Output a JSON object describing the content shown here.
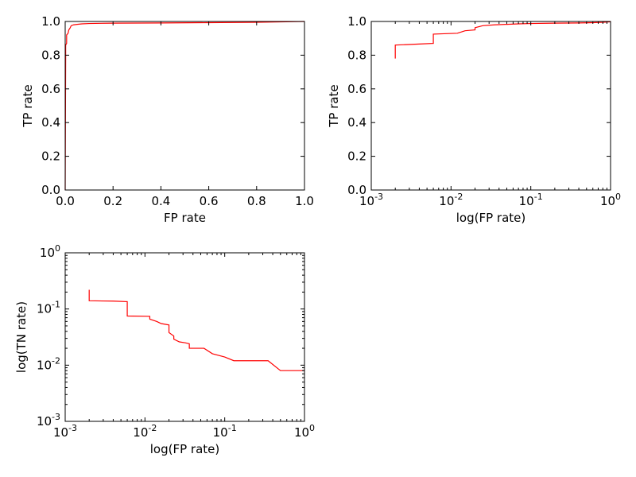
{
  "chart_data": [
    {
      "type": "line",
      "xlabel": "FP rate",
      "ylabel": "TP rate",
      "xscale": "linear",
      "yscale": "linear",
      "xlim": [
        0.0,
        1.0
      ],
      "ylim": [
        0.0,
        1.0
      ],
      "xticks": [
        0.0,
        0.2,
        0.4,
        0.6,
        0.8,
        1.0
      ],
      "yticks": [
        0.0,
        0.2,
        0.4,
        0.6,
        0.8,
        1.0
      ],
      "xticklabels": [
        "0.0",
        "0.2",
        "0.4",
        "0.6",
        "0.8",
        "1.0"
      ],
      "yticklabels": [
        "0.0",
        "0.2",
        "0.4",
        "0.6",
        "0.8",
        "1.0"
      ],
      "grid": false,
      "color": "#ff0000",
      "series": [
        {
          "x": [
            0.0,
            0.002,
            0.002,
            0.006,
            0.006,
            0.012,
            0.015,
            0.02,
            0.025,
            0.035,
            0.05,
            0.07,
            0.1,
            0.2,
            0.4,
            0.6,
            0.8,
            1.0
          ],
          "y": [
            0.0,
            0.78,
            0.86,
            0.87,
            0.92,
            0.93,
            0.95,
            0.96,
            0.975,
            0.98,
            0.983,
            0.986,
            0.988,
            0.99,
            0.991,
            0.993,
            0.995,
            1.0
          ]
        }
      ]
    },
    {
      "type": "line",
      "xlabel": "log(FP rate)",
      "ylabel": "TP rate",
      "xscale": "log",
      "yscale": "linear",
      "xlim": [
        0.001,
        1.0
      ],
      "ylim": [
        0.0,
        1.0
      ],
      "xticks": [
        0.001,
        0.01,
        0.1,
        1.0
      ],
      "xticklabels": [
        [
          "10",
          "-3"
        ],
        [
          "10",
          "-2"
        ],
        [
          "10",
          "-1"
        ],
        [
          "10",
          "0"
        ]
      ],
      "yticks": [
        0.0,
        0.2,
        0.4,
        0.6,
        0.8,
        1.0
      ],
      "yticklabels": [
        "0.0",
        "0.2",
        "0.4",
        "0.6",
        "0.8",
        "1.0"
      ],
      "grid": false,
      "color": "#ff0000",
      "series": [
        {
          "x": [
            0.002,
            0.002,
            0.004,
            0.006,
            0.006,
            0.012,
            0.015,
            0.02,
            0.02,
            0.025,
            0.035,
            0.05,
            0.07,
            0.1,
            0.2,
            0.4,
            0.6,
            0.8,
            1.0
          ],
          "y": [
            0.78,
            0.86,
            0.866,
            0.87,
            0.925,
            0.93,
            0.945,
            0.95,
            0.963,
            0.975,
            0.98,
            0.983,
            0.986,
            0.988,
            0.99,
            0.991,
            0.993,
            0.995,
            0.998
          ]
        }
      ]
    },
    {
      "type": "line",
      "xlabel": "log(FP rate)",
      "ylabel": "log(TN rate)",
      "xscale": "log",
      "yscale": "log",
      "xlim": [
        0.001,
        1.0
      ],
      "ylim": [
        0.001,
        1.0
      ],
      "xticks": [
        0.001,
        0.01,
        0.1,
        1.0
      ],
      "xticklabels": [
        [
          "10",
          "-3"
        ],
        [
          "10",
          "-2"
        ],
        [
          "10",
          "-1"
        ],
        [
          "10",
          "0"
        ]
      ],
      "yticks": [
        0.001,
        0.01,
        0.1,
        1.0
      ],
      "yticklabels": [
        [
          "10",
          "-3"
        ],
        [
          "10",
          "-2"
        ],
        [
          "10",
          "-1"
        ],
        [
          "10",
          "0"
        ]
      ],
      "grid": false,
      "color": "#ff0000",
      "series": [
        {
          "x": [
            0.002,
            0.002,
            0.004,
            0.006,
            0.006,
            0.0115,
            0.0115,
            0.014,
            0.016,
            0.02,
            0.02,
            0.023,
            0.023,
            0.027,
            0.032,
            0.036,
            0.036,
            0.055,
            0.07,
            0.1,
            0.13,
            0.35,
            0.5,
            1.0
          ],
          "y": [
            0.22,
            0.14,
            0.138,
            0.135,
            0.075,
            0.074,
            0.066,
            0.06,
            0.055,
            0.052,
            0.038,
            0.033,
            0.029,
            0.026,
            0.025,
            0.024,
            0.02,
            0.02,
            0.016,
            0.014,
            0.012,
            0.012,
            0.008,
            0.008
          ]
        }
      ]
    }
  ]
}
